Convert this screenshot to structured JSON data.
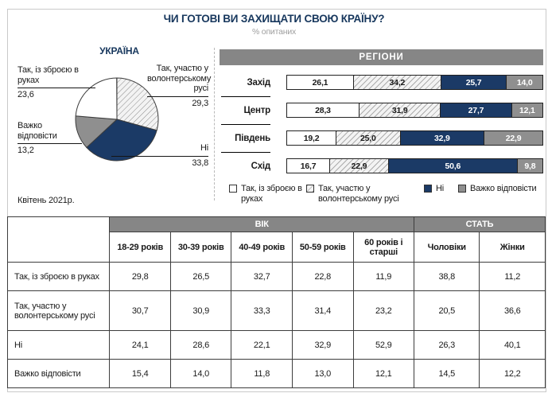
{
  "page": {
    "title": "ЧИ ГОТОВІ ВИ ЗАХИЩАТИ СВОЮ КРАЇНУ?",
    "subtitle": "% опитаних"
  },
  "colors": {
    "navy": "#1b3a66",
    "slice_gray": "#8f8f8f",
    "band_gray": "#868686",
    "title_navy": "#17375d"
  },
  "chart_data": [
    {
      "type": "pie",
      "title": "УКРАЇНА",
      "note": "Квітень 2021р.",
      "start_angle_deg": 0,
      "direction": "clockwise",
      "slices": [
        {
          "label": "Так, участю у волонтерському русі",
          "value": 29.3,
          "display": "29,3",
          "style": "hatch"
        },
        {
          "label": "Ні",
          "value": 33.8,
          "display": "33,8",
          "style": "navy"
        },
        {
          "label": "Важко відповісти",
          "value": 13.2,
          "display": "13,2",
          "style": "gray"
        },
        {
          "label": "Так, із зброєю в руках",
          "value": 23.6,
          "display": "23,6",
          "style": "white"
        }
      ]
    },
    {
      "type": "bar",
      "stacked": true,
      "title": "РЕГІОНИ",
      "categories": [
        "Захід",
        "Центр",
        "Південь",
        "Схід"
      ],
      "xlim": [
        0,
        100
      ],
      "legend_position": "bottom",
      "series": [
        {
          "name": "Так, із зброєю в руках",
          "style": "white",
          "values": [
            26.1,
            28.3,
            19.2,
            16.7
          ]
        },
        {
          "name": "Так, участю у волонтерському русі",
          "style": "hatch",
          "values": [
            34.2,
            31.9,
            25.0,
            22.9
          ]
        },
        {
          "name": "Ні",
          "style": "navy",
          "values": [
            25.7,
            27.7,
            32.9,
            50.6
          ]
        },
        {
          "name": "Важко відповісти",
          "style": "gray",
          "values": [
            14.0,
            12.1,
            22.9,
            9.8
          ]
        }
      ]
    },
    {
      "type": "table",
      "col_groups": [
        {
          "label": "ВІК",
          "span": 5
        },
        {
          "label": "СТАТЬ",
          "span": 2
        }
      ],
      "columns": [
        "18-29 років",
        "30-39 років",
        "40-49 років",
        "50-59 років",
        "60 років і старші",
        "Чоловіки",
        "Жінки"
      ],
      "rows": [
        {
          "label": "Так, із зброєю в руках",
          "values": [
            "29,8",
            "26,5",
            "32,7",
            "22,8",
            "11,9",
            "38,8",
            "11,2"
          ]
        },
        {
          "label": "Так, участю у волонтерському русі",
          "values": [
            "30,7",
            "30,9",
            "33,3",
            "31,4",
            "23,2",
            "20,5",
            "36,6"
          ]
        },
        {
          "label": "Ні",
          "values": [
            "24,1",
            "28,6",
            "22,1",
            "32,9",
            "52,9",
            "26,3",
            "40,1"
          ]
        },
        {
          "label": "Важко відповісти",
          "values": [
            "15,4",
            "14,0",
            "11,8",
            "13,0",
            "12,1",
            "14,5",
            "12,2"
          ]
        }
      ]
    }
  ]
}
